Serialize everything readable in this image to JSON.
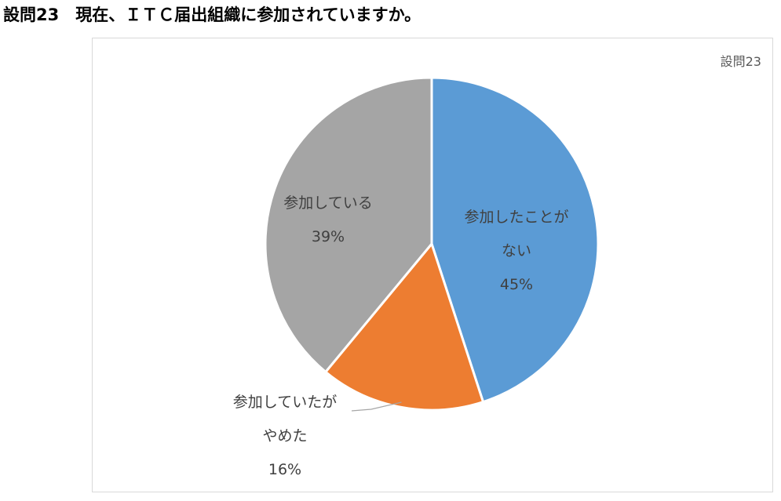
{
  "heading": "設問23　現在、ＩＴＣ届出組織に参加されていますか。",
  "chart_data": {
    "type": "pie",
    "title": "設問23",
    "slices": [
      {
        "label_lines": [
          "参加したことが",
          "ない"
        ],
        "value": 45,
        "value_label": "45%",
        "color": "#5b9bd5"
      },
      {
        "label_lines": [
          "参加していたが",
          "やめた"
        ],
        "value": 16,
        "value_label": "16%",
        "color": "#ed7d31"
      },
      {
        "label_lines": [
          "参加している"
        ],
        "value": 39,
        "value_label": "39%",
        "color": "#a5a5a5"
      }
    ]
  }
}
